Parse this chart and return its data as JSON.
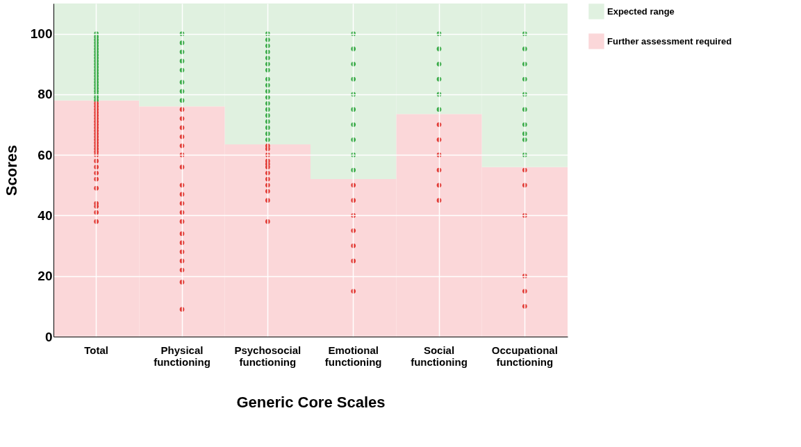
{
  "chart_data": {
    "type": "bar",
    "stacked": true,
    "xlabel": "Generic Core Scales",
    "ylabel": "Scores",
    "categories": [
      "Total",
      "Physical functioning",
      "Psychosocial functioning",
      "Emotional functioning",
      "Social functioning",
      "Occupational functioning"
    ],
    "series": [
      {
        "name": "Further assessment required",
        "color": "#fbd7d9",
        "values": [
          78,
          76,
          63.5,
          52,
          73.5,
          56
        ]
      },
      {
        "name": "Expected range",
        "color": "#e0f1e0",
        "values": [
          32,
          34,
          46.5,
          58,
          36.5,
          54
        ]
      },
      {
        "type": "scatter",
        "color": "#3aab48",
        "x": [
          "Total",
          "Total",
          "Total",
          "Total",
          "Total",
          "Total",
          "Total",
          "Total",
          "Total",
          "Total",
          "Total",
          "Total",
          "Total",
          "Total",
          "Total",
          "Total",
          "Total",
          "Total",
          "Total",
          "Total",
          "Total",
          "Total",
          "Total",
          "Physical functioning",
          "Physical functioning",
          "Physical functioning",
          "Physical functioning",
          "Physical functioning",
          "Physical functioning",
          "Physical functioning",
          "Physical functioning",
          "Psychosocial functioning",
          "Psychosocial functioning",
          "Psychosocial functioning",
          "Psychosocial functioning",
          "Psychosocial functioning",
          "Psychosocial functioning",
          "Psychosocial functioning",
          "Psychosocial functioning",
          "Psychosocial functioning",
          "Psychosocial functioning",
          "Psychosocial functioning",
          "Psychosocial functioning",
          "Psychosocial functioning",
          "Psychosocial functioning",
          "Psychosocial functioning",
          "Psychosocial functioning",
          "Psychosocial functioning",
          "Psychosocial functioning",
          "Emotional functioning",
          "Emotional functioning",
          "Emotional functioning",
          "Emotional functioning",
          "Emotional functioning",
          "Emotional functioning",
          "Emotional functioning",
          "Emotional functioning",
          "Emotional functioning",
          "Emotional functioning",
          "Social functioning",
          "Social functioning",
          "Social functioning",
          "Social functioning",
          "Social functioning",
          "Social functioning",
          "Occupational functioning",
          "Occupational functioning",
          "Occupational functioning",
          "Occupational functioning",
          "Occupational functioning",
          "Occupational functioning",
          "Occupational functioning",
          "Occupational functioning",
          "Occupational functioning",
          "Occupational functioning"
        ],
        "values": [
          78,
          79,
          80,
          81,
          82,
          83,
          84,
          85,
          86,
          87,
          88,
          89,
          90,
          91,
          92,
          93,
          94,
          95,
          96,
          97,
          98,
          99,
          100,
          78,
          81,
          84,
          88,
          91,
          94,
          97,
          100,
          65,
          67,
          69,
          71,
          73,
          75,
          77,
          79,
          81,
          83,
          85,
          88,
          90,
          92,
          94,
          96,
          98,
          100,
          55,
          60,
          65,
          70,
          75,
          80,
          85,
          90,
          95,
          100,
          75,
          80,
          85,
          90,
          95,
          100,
          60,
          65,
          67,
          70,
          75,
          80,
          85,
          90,
          95,
          100
        ]
      },
      {
        "type": "scatter",
        "color": "#e23b36",
        "x": [
          "Total",
          "Total",
          "Total",
          "Total",
          "Total",
          "Total",
          "Total",
          "Total",
          "Total",
          "Total",
          "Total",
          "Total",
          "Total",
          "Total",
          "Total",
          "Total",
          "Total",
          "Total",
          "Total",
          "Total",
          "Total",
          "Total",
          "Total",
          "Total",
          "Total",
          "Total",
          "Total",
          "Physical functioning",
          "Physical functioning",
          "Physical functioning",
          "Physical functioning",
          "Physical functioning",
          "Physical functioning",
          "Physical functioning",
          "Physical functioning",
          "Physical functioning",
          "Physical functioning",
          "Physical functioning",
          "Physical functioning",
          "Physical functioning",
          "Physical functioning",
          "Physical functioning",
          "Physical functioning",
          "Physical functioning",
          "Physical functioning",
          "Physical functioning",
          "Psychosocial functioning",
          "Psychosocial functioning",
          "Psychosocial functioning",
          "Psychosocial functioning",
          "Psychosocial functioning",
          "Psychosocial functioning",
          "Psychosocial functioning",
          "Psychosocial functioning",
          "Psychosocial functioning",
          "Psychosocial functioning",
          "Psychosocial functioning",
          "Psychosocial functioning",
          "Emotional functioning",
          "Emotional functioning",
          "Emotional functioning",
          "Emotional functioning",
          "Emotional functioning",
          "Emotional functioning",
          "Emotional functioning",
          "Social functioning",
          "Social functioning",
          "Social functioning",
          "Social functioning",
          "Social functioning",
          "Social functioning",
          "Occupational functioning",
          "Occupational functioning",
          "Occupational functioning",
          "Occupational functioning",
          "Occupational functioning",
          "Occupational functioning"
        ],
        "values": [
          38,
          41,
          43,
          49,
          52,
          54,
          56,
          58,
          60,
          61,
          62,
          63,
          64,
          65,
          66,
          67,
          68,
          69,
          70,
          71,
          72,
          73,
          74,
          75,
          76,
          77,
          44,
          9,
          18,
          22,
          25,
          28,
          31,
          34,
          38,
          41,
          44,
          47,
          50,
          56,
          60,
          63,
          66,
          69,
          72,
          75,
          38,
          45,
          48,
          50,
          52,
          54,
          56,
          58,
          60,
          62,
          63,
          57,
          15,
          25,
          30,
          35,
          40,
          45,
          50,
          45,
          50,
          55,
          60,
          65,
          70,
          10,
          15,
          20,
          40,
          50,
          55
        ]
      }
    ],
    "ylim": [
      0,
      110
    ],
    "yticks": [
      0,
      20,
      40,
      60,
      80,
      100
    ],
    "grid": true,
    "legend": "right"
  }
}
